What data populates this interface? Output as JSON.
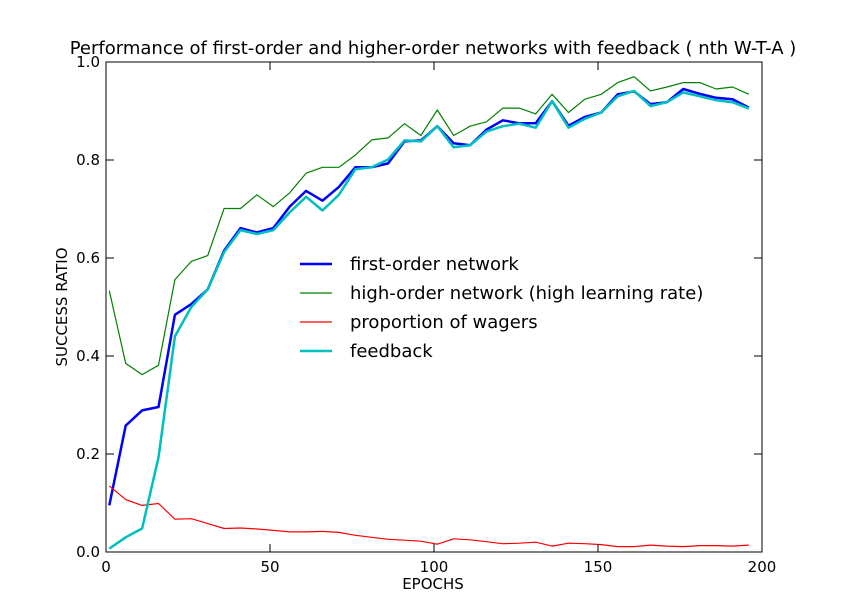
{
  "chart_data": {
    "type": "line",
    "title": "Performance of first-order and higher-order networks with feedback ( nth W-T-A )",
    "xlabel": "EPOCHS",
    "ylabel": "SUCCESS RATIO",
    "xlim": [
      0,
      200
    ],
    "ylim": [
      0.0,
      1.0
    ],
    "xticks": [
      "0",
      "50",
      "100",
      "150",
      "200"
    ],
    "yticks": [
      "0.0",
      "0.2",
      "0.4",
      "0.6",
      "0.8",
      "1.0"
    ],
    "grid": false,
    "legend_position": "center",
    "x": [
      1,
      6,
      11,
      16,
      21,
      26,
      31,
      36,
      41,
      46,
      51,
      56,
      61,
      66,
      71,
      76,
      81,
      86,
      91,
      96,
      101,
      106,
      111,
      116,
      121,
      126,
      131,
      136,
      141,
      146,
      151,
      156,
      161,
      166,
      171,
      176,
      181,
      186,
      191,
      196
    ],
    "series": [
      {
        "name": "first-order network",
        "color": "#0000ff",
        "width": 2.5,
        "values": [
          0.095,
          0.258,
          0.289,
          0.296,
          0.484,
          0.506,
          0.536,
          0.615,
          0.661,
          0.652,
          0.661,
          0.705,
          0.737,
          0.717,
          0.745,
          0.785,
          0.785,
          0.793,
          0.838,
          0.84,
          0.869,
          0.834,
          0.83,
          0.862,
          0.881,
          0.875,
          0.875,
          0.92,
          0.87,
          0.888,
          0.897,
          0.934,
          0.94,
          0.914,
          0.918,
          0.945,
          0.935,
          0.927,
          0.924,
          0.907
        ]
      },
      {
        "name": "high-order network (high learning rate)",
        "color": "#008000",
        "width": 1.2,
        "values": [
          0.533,
          0.385,
          0.362,
          0.381,
          0.556,
          0.593,
          0.605,
          0.701,
          0.701,
          0.729,
          0.705,
          0.733,
          0.773,
          0.785,
          0.785,
          0.81,
          0.841,
          0.845,
          0.874,
          0.85,
          0.902,
          0.85,
          0.869,
          0.878,
          0.906,
          0.906,
          0.894,
          0.934,
          0.897,
          0.924,
          0.934,
          0.958,
          0.97,
          0.941,
          0.949,
          0.958,
          0.958,
          0.945,
          0.949,
          0.934
        ]
      },
      {
        "name": "proportion of wagers",
        "color": "#ff0000",
        "width": 1.2,
        "values": [
          0.135,
          0.107,
          0.095,
          0.099,
          0.067,
          0.068,
          0.058,
          0.048,
          0.049,
          0.047,
          0.044,
          0.041,
          0.041,
          0.042,
          0.04,
          0.034,
          0.03,
          0.026,
          0.024,
          0.022,
          0.016,
          0.027,
          0.025,
          0.021,
          0.017,
          0.018,
          0.02,
          0.012,
          0.018,
          0.017,
          0.015,
          0.011,
          0.011,
          0.014,
          0.012,
          0.011,
          0.013,
          0.013,
          0.012,
          0.014
        ]
      },
      {
        "name": "feedback",
        "color": "#00bfbf",
        "width": 2.5,
        "values": [
          0.007,
          0.03,
          0.048,
          0.193,
          0.44,
          0.5,
          0.536,
          0.612,
          0.657,
          0.649,
          0.657,
          0.693,
          0.725,
          0.697,
          0.729,
          0.781,
          0.785,
          0.801,
          0.84,
          0.838,
          0.869,
          0.826,
          0.83,
          0.858,
          0.869,
          0.874,
          0.866,
          0.92,
          0.866,
          0.884,
          0.897,
          0.93,
          0.941,
          0.91,
          0.918,
          0.938,
          0.93,
          0.922,
          0.918,
          0.905
        ]
      }
    ]
  }
}
